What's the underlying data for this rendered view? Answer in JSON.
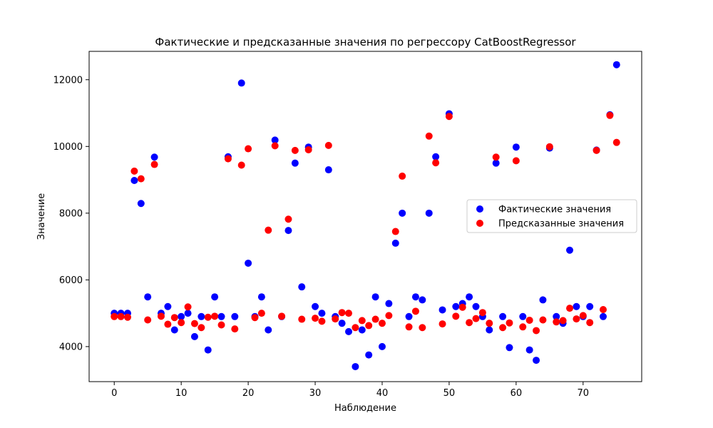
{
  "chart_data": {
    "type": "scatter",
    "title": "Фактические и предсказанные значения по регрессору CatBoostRegressor",
    "xlabel": "Наблюдение",
    "ylabel": "Значение",
    "xlim": [
      -3.75,
      78.75
    ],
    "ylim": [
      2950,
      12850
    ],
    "xticks": [
      0,
      10,
      20,
      30,
      40,
      50,
      60,
      70
    ],
    "yticks": [
      4000,
      6000,
      8000,
      10000,
      12000
    ],
    "grid": false,
    "legend_position": "center-right",
    "series": [
      {
        "name": "Фактические значения",
        "color": "#0000ff",
        "x": [
          0,
          1,
          2,
          3,
          4,
          5,
          6,
          7,
          8,
          9,
          10,
          11,
          12,
          13,
          14,
          15,
          16,
          17,
          18,
          19,
          20,
          21,
          22,
          23,
          24,
          25,
          26,
          27,
          28,
          29,
          30,
          31,
          32,
          33,
          34,
          35,
          36,
          37,
          38,
          39,
          40,
          41,
          42,
          43,
          44,
          45,
          46,
          47,
          48,
          49,
          50,
          51,
          52,
          53,
          54,
          55,
          56,
          57,
          58,
          59,
          60,
          61,
          62,
          63,
          64,
          65,
          66,
          67,
          68,
          69,
          70,
          71,
          72,
          73,
          74,
          75
        ],
        "y": [
          5000,
          5000,
          5000,
          8980,
          8290,
          5490,
          9680,
          5000,
          5200,
          4500,
          4900,
          5000,
          4300,
          4900,
          3900,
          5490,
          4900,
          9690,
          4900,
          11900,
          6500,
          4900,
          5490,
          4500,
          10190,
          4900,
          7480,
          9500,
          5790,
          9980,
          5200,
          5000,
          9300,
          4900,
          4700,
          4450,
          3400,
          4500,
          3750,
          5490,
          4000,
          5290,
          7100,
          8000,
          4900,
          5490,
          5400,
          8000,
          9690,
          5100,
          10980,
          5200,
          5290,
          5490,
          5200,
          4900,
          4500,
          9500,
          4900,
          3970,
          9980,
          4900,
          3900,
          3590,
          5400,
          9950,
          4900,
          4700,
          6890,
          5200,
          4900,
          5200,
          9890,
          4900,
          10950,
          12450
        ]
      },
      {
        "name": "Предсказанные значения",
        "color": "#ff0000",
        "x": [
          0,
          1,
          2,
          3,
          4,
          5,
          6,
          7,
          8,
          9,
          10,
          11,
          12,
          13,
          14,
          15,
          16,
          17,
          18,
          19,
          20,
          21,
          22,
          23,
          24,
          25,
          26,
          27,
          28,
          29,
          30,
          31,
          32,
          33,
          34,
          35,
          36,
          37,
          38,
          39,
          40,
          41,
          42,
          43,
          44,
          45,
          46,
          47,
          48,
          49,
          50,
          51,
          52,
          53,
          54,
          55,
          56,
          57,
          58,
          59,
          60,
          61,
          62,
          63,
          64,
          65,
          66,
          67,
          68,
          69,
          70,
          71,
          72,
          73,
          74,
          75
        ],
        "y": [
          4900,
          4900,
          4880,
          9260,
          9030,
          4800,
          9460,
          4910,
          4670,
          4870,
          4720,
          5190,
          4690,
          4570,
          4880,
          4910,
          4650,
          9630,
          4530,
          9440,
          9930,
          4870,
          5000,
          7490,
          10020,
          4910,
          7820,
          9880,
          4820,
          9900,
          4850,
          4760,
          10030,
          4830,
          5020,
          5000,
          4570,
          4780,
          4630,
          4820,
          4700,
          4930,
          7450,
          9110,
          4590,
          5060,
          4570,
          10310,
          9510,
          4680,
          10900,
          4910,
          5180,
          4720,
          4840,
          5020,
          4700,
          9680,
          4570,
          4710,
          9570,
          4590,
          4790,
          4480,
          4800,
          9990,
          4740,
          4780,
          5150,
          4830,
          4930,
          4720,
          9880,
          5110,
          10930,
          10120
        ]
      }
    ]
  }
}
